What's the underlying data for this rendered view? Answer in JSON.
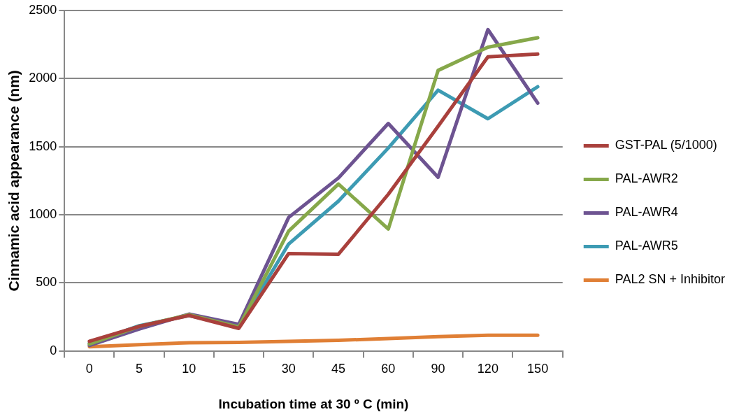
{
  "chart_data": {
    "type": "line",
    "xlabel": "Incubation time at 30 º C (min)",
    "ylabel": "Cinnamic acid appearance (nm)",
    "categories": [
      "0",
      "5",
      "10",
      "15",
      "30",
      "45",
      "60",
      "90",
      "120",
      "150"
    ],
    "series": [
      {
        "name": "GST-PAL (5/1000)",
        "color": "#a9403c",
        "values": [
          70,
          180,
          260,
          165,
          715,
          710,
          1150,
          1650,
          2160,
          2180
        ]
      },
      {
        "name": "PAL-AWR2",
        "color": "#86a84a",
        "values": [
          50,
          180,
          265,
          175,
          880,
          1225,
          895,
          2060,
          2230,
          2300
        ]
      },
      {
        "name": "PAL-AWR4",
        "color": "#6d5391",
        "values": [
          40,
          160,
          270,
          195,
          980,
          1270,
          1670,
          1275,
          2360,
          1820
        ]
      },
      {
        "name": "PAL-AWR5",
        "color": "#3d9bb3",
        "values": [
          55,
          185,
          260,
          175,
          785,
          1100,
          1490,
          1915,
          1705,
          1940
        ]
      },
      {
        "name": "PAL2 SN + Inhibitor",
        "color": "#e07f35",
        "values": [
          30,
          45,
          60,
          62,
          70,
          78,
          90,
          105,
          115,
          115
        ]
      }
    ],
    "ylim": [
      0,
      2500
    ],
    "yticks": [
      0,
      500,
      1000,
      1500,
      2000,
      2500
    ],
    "grid": "y",
    "legend": "right",
    "marker": "none",
    "line_style": "solid"
  }
}
